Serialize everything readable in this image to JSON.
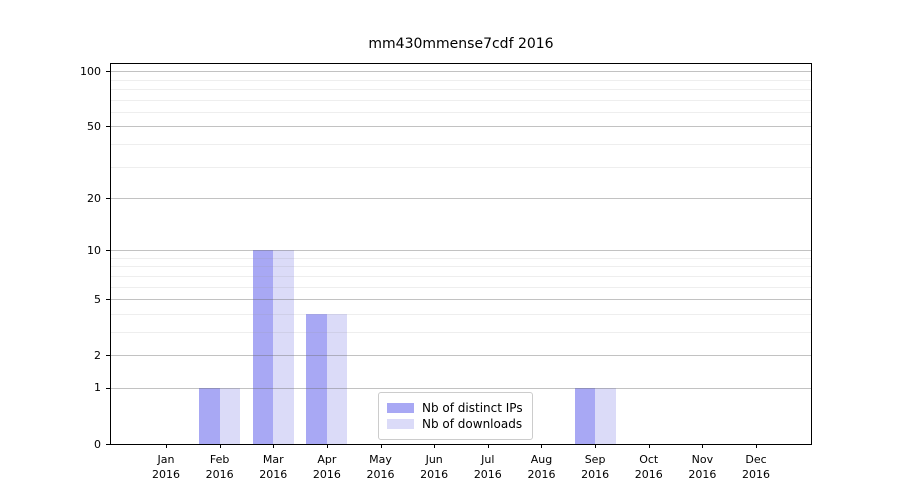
{
  "chart_data": {
    "type": "bar",
    "title": "mm430mmense7cdf 2016",
    "categories": [
      "Jan",
      "Feb",
      "Mar",
      "Apr",
      "May",
      "Jun",
      "Jul",
      "Aug",
      "Sep",
      "Oct",
      "Nov",
      "Dec"
    ],
    "category_year": "2016",
    "series": [
      {
        "name": "Nb of distinct IPs",
        "color": "#a8a8f4",
        "values": [
          0,
          1,
          10,
          4,
          0,
          0,
          0,
          0,
          1,
          0,
          0,
          0
        ]
      },
      {
        "name": "Nb of downloads",
        "color": "#dbdbf8",
        "values": [
          0,
          1,
          10,
          4,
          0,
          0,
          0,
          0,
          1,
          0,
          0,
          0
        ]
      }
    ],
    "xlabel": "",
    "ylabel": "",
    "yscale": "log1p",
    "ylim": [
      0,
      110
    ],
    "yticks": [
      0,
      1,
      2,
      5,
      10,
      20,
      50,
      100
    ],
    "y_minor_gridlines": [
      3,
      4,
      6,
      7,
      8,
      9,
      30,
      40,
      60,
      70,
      80,
      90
    ],
    "grid": "on",
    "grid_above_bars": true,
    "legend_position": "lower center inside plot",
    "colors": {
      "axis": "#000000",
      "major_grid": "#c3c3c3",
      "minor_grid": "#ececec",
      "text": "#000000",
      "background": "#ffffff"
    }
  }
}
